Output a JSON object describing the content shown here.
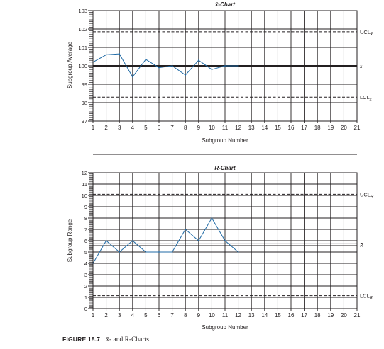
{
  "colors": {
    "series": "#1f6aa5",
    "grid": "#231f20",
    "text": "#231f20",
    "divider": "#231f20"
  },
  "caption": {
    "label": "FIGURE 18.7",
    "text": "x̄- and R-Charts."
  },
  "chart_data": [
    {
      "type": "line",
      "title": "x̄-Chart",
      "xlabel": "Subgroup Number",
      "ylabel": "Subgroup Average",
      "xlim": [
        1,
        21
      ],
      "ylim": [
        97,
        103
      ],
      "x_ticks": [
        1,
        2,
        3,
        4,
        5,
        6,
        7,
        8,
        9,
        10,
        11,
        12,
        13,
        14,
        15,
        16,
        17,
        18,
        19,
        20,
        21
      ],
      "y_ticks": [
        97,
        98,
        99,
        100,
        101,
        102,
        103
      ],
      "grid": true,
      "series": [
        {
          "x": [
            1,
            2,
            3,
            4,
            5,
            6,
            7,
            8,
            9,
            10,
            11,
            12
          ],
          "y": [
            100.2,
            100.6,
            100.65,
            99.4,
            100.35,
            99.9,
            100.0,
            99.5,
            100.3,
            99.8,
            100.0,
            100.0
          ]
        }
      ],
      "reference_lines": [
        {
          "label": "UCLx̄",
          "y": 101.85,
          "style": "dashed"
        },
        {
          "label": "x̿",
          "y": 100.0,
          "style": "solid"
        },
        {
          "label": "LCLx̄",
          "y": 98.3,
          "style": "dashed"
        }
      ]
    },
    {
      "type": "line",
      "title": "R-Chart",
      "xlabel": "Subgroup Number",
      "ylabel": "Subgroup Range",
      "xlim": [
        1,
        21
      ],
      "ylim": [
        0,
        12
      ],
      "x_ticks": [
        1,
        2,
        3,
        4,
        5,
        6,
        7,
        8,
        9,
        10,
        11,
        12,
        13,
        14,
        15,
        16,
        17,
        18,
        19,
        20,
        21
      ],
      "y_ticks": [
        0,
        1,
        2,
        3,
        4,
        5,
        6,
        7,
        8,
        9,
        10,
        11,
        12
      ],
      "grid": true,
      "series": [
        {
          "x": [
            1,
            2,
            3,
            4,
            5,
            6,
            7,
            8,
            9,
            10,
            11,
            12
          ],
          "y": [
            4,
            6,
            5,
            6,
            5,
            5,
            5,
            7,
            6,
            8,
            6,
            5
          ]
        }
      ],
      "reference_lines": [
        {
          "label": "UCLR",
          "y": 10.1,
          "style": "dashed"
        },
        {
          "label": "R̄",
          "y": 5.65,
          "style": "double"
        },
        {
          "label": "LCLR",
          "y": 1.15,
          "style": "dashed"
        }
      ]
    }
  ]
}
